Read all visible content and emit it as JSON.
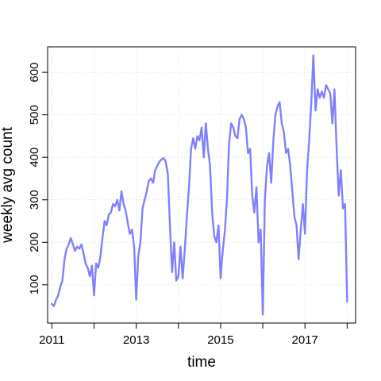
{
  "chart_data": {
    "type": "line",
    "title": "",
    "xlabel": "time",
    "ylabel": "weekly avg count",
    "xlim": [
      2010.9,
      2018.2
    ],
    "ylim": [
      10,
      660
    ],
    "grid": true,
    "legend": "none",
    "line_color": "#8080ff",
    "x_ticks": [
      2011,
      2012,
      2013,
      2014,
      2015,
      2016,
      2017,
      2018
    ],
    "x_tick_labels": [
      {
        "value": 2011,
        "label": "2011"
      },
      {
        "value": 2013,
        "label": "2013"
      },
      {
        "value": 2015,
        "label": "2015"
      },
      {
        "value": 2017,
        "label": "2017"
      }
    ],
    "y_ticks": [
      100,
      200,
      300,
      400,
      500,
      600
    ],
    "y_tick_labels": [
      "100",
      "200",
      "300",
      "400",
      "500",
      "600"
    ],
    "series": [
      {
        "x": [
          2011.0,
          2011.05,
          2011.1,
          2011.15,
          2011.2,
          2011.25,
          2011.3,
          2011.35,
          2011.4,
          2011.45,
          2011.5,
          2011.55,
          2011.6,
          2011.65,
          2011.7,
          2011.75,
          2011.8,
          2011.85,
          2011.9,
          2011.95,
          2012.0,
          2012.05,
          2012.1,
          2012.15,
          2012.2,
          2012.25,
          2012.3,
          2012.35,
          2012.4,
          2012.45,
          2012.5,
          2012.55,
          2012.6,
          2012.65,
          2012.7,
          2012.75,
          2012.8,
          2012.85,
          2012.9,
          2012.95,
          2013.0,
          2013.05,
          2013.1,
          2013.15,
          2013.2,
          2013.25,
          2013.3,
          2013.35,
          2013.4,
          2013.45,
          2013.5,
          2013.55,
          2013.6,
          2013.65,
          2013.7,
          2013.75,
          2013.8,
          2013.85,
          2013.9,
          2013.95,
          2014.0,
          2014.05,
          2014.1,
          2014.15,
          2014.2,
          2014.25,
          2014.3,
          2014.35,
          2014.4,
          2014.45,
          2014.5,
          2014.55,
          2014.6,
          2014.65,
          2014.7,
          2014.75,
          2014.8,
          2014.85,
          2014.9,
          2014.95,
          2015.0,
          2015.05,
          2015.1,
          2015.15,
          2015.2,
          2015.25,
          2015.3,
          2015.35,
          2015.4,
          2015.45,
          2015.5,
          2015.55,
          2015.6,
          2015.65,
          2015.7,
          2015.75,
          2015.8,
          2015.85,
          2015.9,
          2015.95,
          2016.0,
          2016.05,
          2016.1,
          2016.15,
          2016.2,
          2016.25,
          2016.3,
          2016.35,
          2016.4,
          2016.45,
          2016.5,
          2016.55,
          2016.6,
          2016.65,
          2016.7,
          2016.75,
          2016.8,
          2016.85,
          2016.9,
          2016.95,
          2017.0,
          2017.05,
          2017.1,
          2017.15,
          2017.2,
          2017.25,
          2017.3,
          2017.35,
          2017.4,
          2017.45,
          2017.5,
          2017.55,
          2017.6,
          2017.65,
          2017.7,
          2017.75,
          2017.8,
          2017.85,
          2017.9,
          2017.95,
          2018.0
        ],
        "y": [
          55,
          50,
          65,
          75,
          95,
          110,
          160,
          185,
          195,
          210,
          195,
          180,
          190,
          185,
          195,
          175,
          150,
          140,
          120,
          145,
          75,
          150,
          140,
          165,
          210,
          250,
          240,
          265,
          270,
          290,
          285,
          300,
          275,
          320,
          290,
          275,
          245,
          220,
          230,
          190,
          65,
          170,
          200,
          280,
          300,
          320,
          345,
          350,
          340,
          370,
          380,
          390,
          395,
          398,
          390,
          360,
          240,
          130,
          200,
          110,
          120,
          190,
          115,
          180,
          260,
          330,
          420,
          445,
          420,
          450,
          440,
          470,
          400,
          480,
          420,
          380,
          270,
          215,
          200,
          240,
          115,
          180,
          225,
          300,
          430,
          480,
          470,
          450,
          445,
          490,
          500,
          490,
          470,
          410,
          420,
          310,
          270,
          330,
          200,
          230,
          30,
          300,
          380,
          410,
          340,
          440,
          500,
          520,
          530,
          480,
          460,
          410,
          420,
          380,
          320,
          260,
          240,
          160,
          230,
          290,
          220,
          370,
          440,
          530,
          640,
          510,
          560,
          540,
          555,
          540,
          570,
          560,
          550,
          480,
          560,
          420,
          310,
          370,
          280,
          290,
          60
        ]
      }
    ]
  }
}
